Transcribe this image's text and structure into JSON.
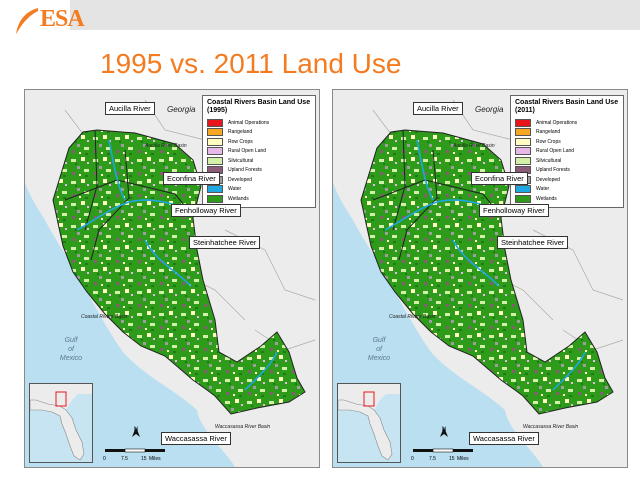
{
  "header": {
    "logo_text": "ESA",
    "title": "1995 vs. 2011 Land Use"
  },
  "legend_items": [
    {
      "label": "Animal Operations",
      "color": "#e8161b"
    },
    {
      "label": "Rangeland",
      "color": "#f5a623"
    },
    {
      "label": "Row Crops",
      "color": "#fffdc2"
    },
    {
      "label": "Rural Open Land",
      "color": "#e7b8e8"
    },
    {
      "label": "Silvicultural",
      "color": "#d3f0a8"
    },
    {
      "label": "Upland Forests",
      "color": "#8b5a78"
    },
    {
      "label": "Developed",
      "color": "#9e9e9e"
    },
    {
      "label": "Water",
      "color": "#1ea7e1"
    },
    {
      "label": "Wetlands",
      "color": "#2e9b1b"
    }
  ],
  "maps": [
    {
      "legend_title": "Coastal Rivers Basin Land Use (1995)"
    },
    {
      "legend_title": "Coastal Rivers Basin Land Use (2011)"
    }
  ],
  "map_labels": {
    "aucilla": "Aucilla River",
    "georgia": "Georgia",
    "aucilla_basin": "Aucilla River Basin",
    "econfina": "Econfina River",
    "fenholloway": "Fenholloway River",
    "steinhatchee": "Steinhatchee River",
    "coastal_basin": "Coastal Rivers Basin",
    "gulf_line1": "Gulf",
    "gulf_line2": "of",
    "gulf_line3": "Mexico",
    "waccasassa_basin": "Waccasassa River Basin",
    "waccasassa": "Waccasassa River",
    "north": "N",
    "scale_0": "0",
    "scale_7_5": "7.5",
    "scale_15": "15",
    "scale_unit": "Miles"
  }
}
